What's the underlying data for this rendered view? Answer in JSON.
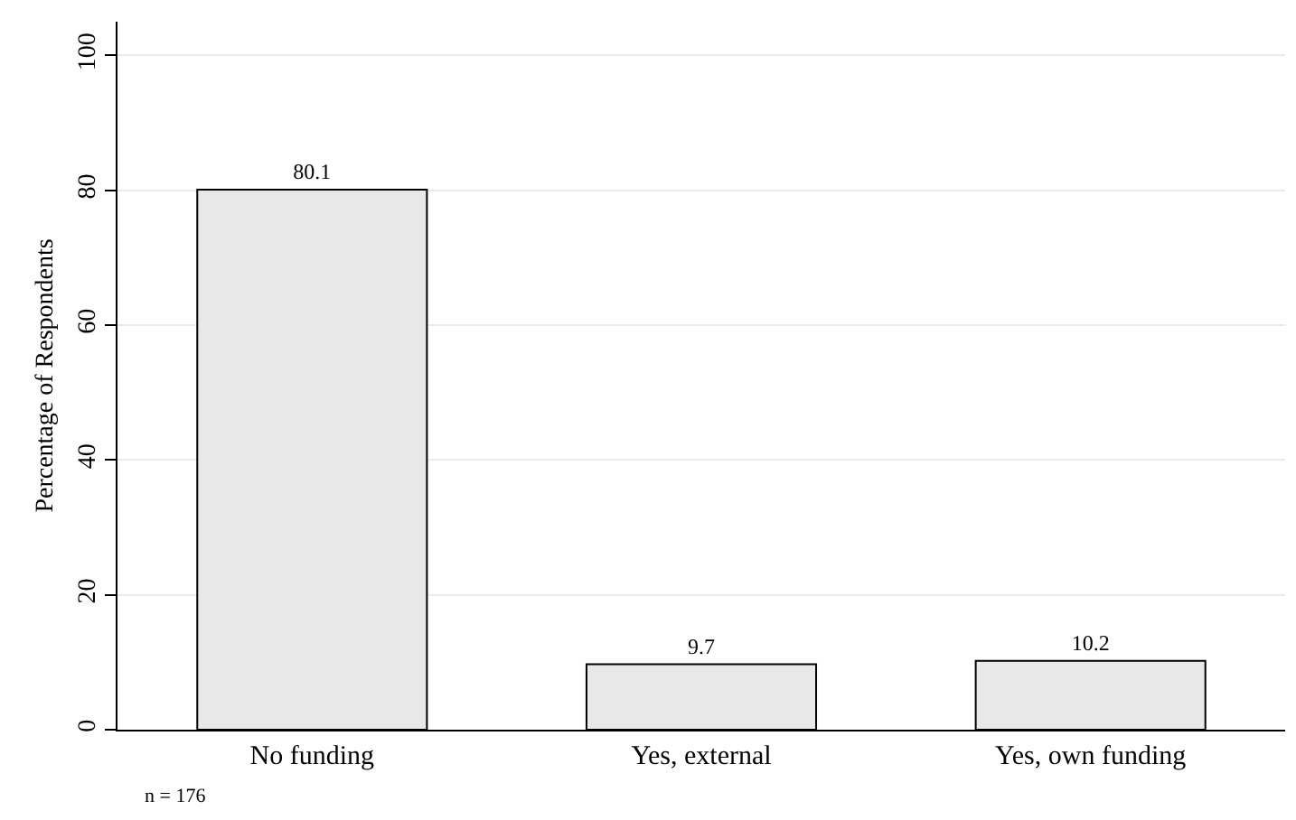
{
  "chart_data": {
    "type": "bar",
    "ylabel": "Percentage of Respondents",
    "categories": [
      "No funding",
      "Yes, external",
      "Yes, own funding"
    ],
    "values": [
      80.1,
      9.7,
      10.2
    ],
    "color": "#e8e8e8",
    "ylim": [
      0,
      105
    ],
    "yticks": [
      0,
      20,
      40,
      60,
      80,
      100
    ],
    "grid": "y",
    "data_labels": true,
    "annotations": [
      "n = 176"
    ]
  }
}
